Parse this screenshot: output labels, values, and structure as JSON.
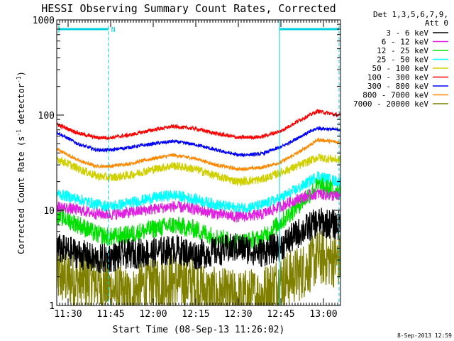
{
  "chart_data": {
    "type": "line",
    "title": "HESSI Observing Summary Count Rates, Corrected",
    "xlabel": "Start Time (08-Sep-13 11:26:02)",
    "ylabel_main": "Corrected Count Rate (s",
    "ylabel_sup1": "-1",
    "ylabel_mid": " detector",
    "ylabel_sup2": "-1",
    "ylabel_end": ")",
    "yscale": "log",
    "ylim": [
      1,
      1000
    ],
    "xlim": [
      686,
      786
    ],
    "y_ticks": [
      {
        "value": 1,
        "label": "1"
      },
      {
        "value": 10,
        "label": "10"
      },
      {
        "value": 100,
        "label": "100"
      },
      {
        "value": 1000,
        "label": "1000"
      }
    ],
    "x_ticks": [
      {
        "value": 690,
        "label": "11:30"
      },
      {
        "value": 705,
        "label": "11:45"
      },
      {
        "value": 720,
        "label": "12:00"
      },
      {
        "value": 735,
        "label": "12:15"
      },
      {
        "value": 750,
        "label": "12:30"
      },
      {
        "value": 765,
        "label": "12:45"
      },
      {
        "value": 780,
        "label": "13:00"
      }
    ],
    "legend_header": [
      "Det 1,3,5,6,7,9,",
      "Att 0"
    ],
    "legend_position": "right",
    "flags": {
      "label": "N",
      "color": "#00d0e0",
      "night_start": 704.2,
      "night_end": 764.5,
      "end": 785.5
    },
    "series": [
      {
        "name": "3 - 6 keV",
        "color": "#000000",
        "noise": 0.16,
        "points": [
          [
            686,
            4.0
          ],
          [
            694,
            3.5
          ],
          [
            700,
            3.0
          ],
          [
            705,
            3.2
          ],
          [
            712,
            3.5
          ],
          [
            720,
            3.6
          ],
          [
            728,
            3.9
          ],
          [
            735,
            3.4
          ],
          [
            742,
            3.7
          ],
          [
            750,
            4.1
          ],
          [
            758,
            3.6
          ],
          [
            765,
            4.2
          ],
          [
            772,
            6.0
          ],
          [
            778,
            7.5
          ],
          [
            785,
            7.0
          ]
        ]
      },
      {
        "name": "6 - 12 keV",
        "color": "#e020e0",
        "noise": 0.06,
        "points": [
          [
            686,
            11
          ],
          [
            694,
            10
          ],
          [
            700,
            9.2
          ],
          [
            705,
            9
          ],
          [
            712,
            9.5
          ],
          [
            720,
            10.3
          ],
          [
            727,
            11
          ],
          [
            735,
            10.2
          ],
          [
            742,
            9.2
          ],
          [
            750,
            8.5
          ],
          [
            758,
            9
          ],
          [
            765,
            11
          ],
          [
            772,
            13.5
          ],
          [
            778,
            15
          ],
          [
            785,
            14
          ]
        ]
      },
      {
        "name": "12 - 25 keV",
        "color": "#00e000",
        "noise": 0.1,
        "points": [
          [
            686,
            9
          ],
          [
            694,
            7
          ],
          [
            700,
            5.6
          ],
          [
            705,
            5.2
          ],
          [
            712,
            5.6
          ],
          [
            720,
            6.4
          ],
          [
            727,
            7
          ],
          [
            735,
            6.3
          ],
          [
            742,
            5.2
          ],
          [
            750,
            4.6
          ],
          [
            758,
            5
          ],
          [
            765,
            7.5
          ],
          [
            772,
            12
          ],
          [
            778,
            18
          ],
          [
            785,
            16
          ]
        ]
      },
      {
        "name": "25 - 50 keV",
        "color": "#00ffff",
        "noise": 0.06,
        "points": [
          [
            686,
            15
          ],
          [
            694,
            13
          ],
          [
            700,
            11.5
          ],
          [
            705,
            11
          ],
          [
            712,
            12
          ],
          [
            720,
            13.5
          ],
          [
            727,
            14.5
          ],
          [
            735,
            13
          ],
          [
            742,
            11.5
          ],
          [
            750,
            10.5
          ],
          [
            758,
            11.2
          ],
          [
            765,
            13.5
          ],
          [
            772,
            17.5
          ],
          [
            778,
            23
          ],
          [
            785,
            20
          ]
        ]
      },
      {
        "name": "50 - 100 keV",
        "color": "#d0d000",
        "noise": 0.045,
        "points": [
          [
            686,
            35
          ],
          [
            694,
            27
          ],
          [
            700,
            23
          ],
          [
            705,
            22
          ],
          [
            712,
            23.5
          ],
          [
            720,
            27
          ],
          [
            727,
            29.5
          ],
          [
            735,
            27
          ],
          [
            742,
            23
          ],
          [
            750,
            20
          ],
          [
            758,
            21
          ],
          [
            765,
            25
          ],
          [
            772,
            30
          ],
          [
            778,
            36
          ],
          [
            785,
            34
          ]
        ]
      },
      {
        "name": "100 - 300 keV",
        "color": "#ff0000",
        "noise": 0.02,
        "points": [
          [
            686,
            80
          ],
          [
            694,
            64
          ],
          [
            700,
            58
          ],
          [
            705,
            58
          ],
          [
            712,
            62
          ],
          [
            720,
            70
          ],
          [
            727,
            76
          ],
          [
            735,
            72
          ],
          [
            742,
            64
          ],
          [
            750,
            58
          ],
          [
            758,
            59
          ],
          [
            765,
            68
          ],
          [
            772,
            90
          ],
          [
            778,
            110
          ],
          [
            785,
            100
          ]
        ]
      },
      {
        "name": "300 - 800 keV",
        "color": "#0000ff",
        "noise": 0.018,
        "points": [
          [
            686,
            66
          ],
          [
            694,
            49
          ],
          [
            700,
            43
          ],
          [
            705,
            43
          ],
          [
            712,
            46
          ],
          [
            720,
            50
          ],
          [
            727,
            53
          ],
          [
            735,
            49
          ],
          [
            742,
            43
          ],
          [
            750,
            38
          ],
          [
            758,
            39
          ],
          [
            765,
            46
          ],
          [
            772,
            60
          ],
          [
            778,
            73
          ],
          [
            785,
            70
          ]
        ]
      },
      {
        "name": "800 - 7000 keV",
        "color": "#ff8800",
        "noise": 0.018,
        "points": [
          [
            686,
            44
          ],
          [
            694,
            33
          ],
          [
            700,
            29
          ],
          [
            705,
            29
          ],
          [
            712,
            31
          ],
          [
            720,
            35
          ],
          [
            727,
            38
          ],
          [
            735,
            35
          ],
          [
            742,
            30
          ],
          [
            750,
            27
          ],
          [
            758,
            28
          ],
          [
            765,
            32
          ],
          [
            772,
            42
          ],
          [
            778,
            55
          ],
          [
            785,
            52
          ]
        ]
      },
      {
        "name": "7000 - 20000 keV",
        "color": "#808000",
        "noise": 0.3,
        "points": [
          [
            686,
            2.0
          ],
          [
            694,
            1.8
          ],
          [
            700,
            1.8
          ],
          [
            705,
            1.5
          ],
          [
            712,
            1.2
          ],
          [
            716,
            1.6
          ],
          [
            720,
            1.8
          ],
          [
            728,
            1.8
          ],
          [
            735,
            1.7
          ],
          [
            740,
            1.3
          ],
          [
            750,
            1.2
          ],
          [
            758,
            1.3
          ],
          [
            765,
            1.8
          ],
          [
            772,
            2.2
          ],
          [
            778,
            3.2
          ],
          [
            785,
            3.0
          ]
        ]
      }
    ]
  },
  "footer": {
    "timestamp": "8-Sep-2013 12:59"
  }
}
